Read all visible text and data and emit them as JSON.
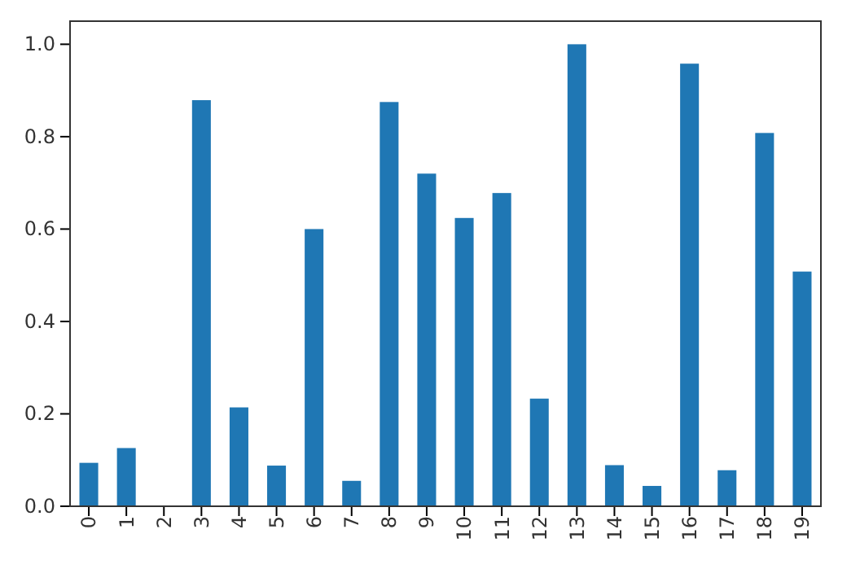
{
  "chart_data": {
    "type": "bar",
    "categories": [
      "0",
      "1",
      "2",
      "3",
      "4",
      "5",
      "6",
      "7",
      "8",
      "9",
      "10",
      "11",
      "12",
      "13",
      "14",
      "15",
      "16",
      "17",
      "18",
      "19"
    ],
    "values": [
      0.094,
      0.126,
      0,
      0.879,
      0.214,
      0.088,
      0.6,
      0.055,
      0.875,
      0.72,
      0.624,
      0.678,
      0.233,
      1.0,
      0.089,
      0.044,
      0.958,
      0.078,
      0.808,
      0.508
    ],
    "color": "#1f77b4",
    "ylim": [
      0,
      1.05
    ],
    "yticks": [
      {
        "value": 0,
        "label": "0.0"
      },
      {
        "value": 0.2,
        "label": "0.2"
      },
      {
        "value": 0.4,
        "label": "0.4"
      },
      {
        "value": 0.6,
        "label": "0.6"
      },
      {
        "value": 0.8,
        "label": "0.8"
      },
      {
        "value": 1,
        "label": "1.0"
      }
    ]
  }
}
